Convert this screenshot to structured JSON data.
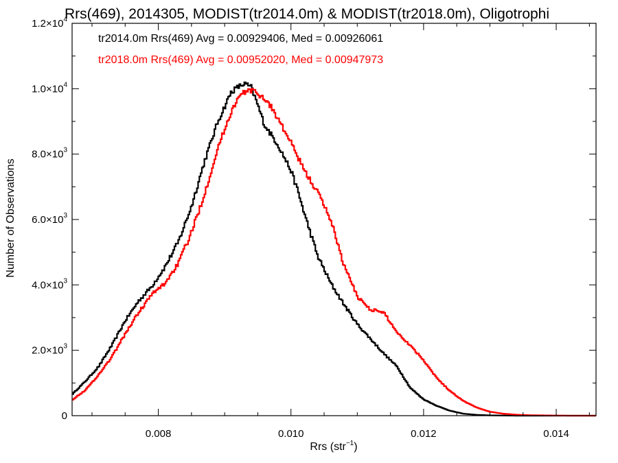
{
  "chart_data": {
    "type": "line",
    "title": "Rrs(469), 2014305, MODIST(tr2014.0m) & MODIST(tr2018.0m), Oligotrophi",
    "xlabel_prefix": "Rrs (str",
    "xlabel_exp": "−1",
    "xlabel_suffix": ")",
    "ylabel": "Number of Observations",
    "xlim": [
      0.0067,
      0.0146
    ],
    "ylim": [
      0,
      12000
    ],
    "x_ticks": [
      {
        "value": 0.008,
        "label": "0.008"
      },
      {
        "value": 0.01,
        "label": "0.010"
      },
      {
        "value": 0.012,
        "label": "0.012"
      },
      {
        "value": 0.014,
        "label": "0.014"
      }
    ],
    "y_ticks": [
      {
        "value": 0,
        "mant": "0",
        "exp": ""
      },
      {
        "value": 2000,
        "mant": "2.0×10",
        "exp": "3"
      },
      {
        "value": 4000,
        "mant": "4.0×10",
        "exp": "3"
      },
      {
        "value": 6000,
        "mant": "6.0×10",
        "exp": "3"
      },
      {
        "value": 8000,
        "mant": "8.0×10",
        "exp": "3"
      },
      {
        "value": 10000,
        "mant": "1.0×10",
        "exp": "4"
      },
      {
        "value": 12000,
        "mant": "1.2×10",
        "exp": "4"
      }
    ],
    "grid": false,
    "legend_position": "top-left",
    "series": [
      {
        "legend": "tr2014.0m Rrs(469) Avg = 0.00929406, Med = 0.00926061",
        "color": "#000000",
        "x": [
          0.0067,
          0.0069,
          0.0071,
          0.0073,
          0.0075,
          0.0077,
          0.0079,
          0.0081,
          0.0083,
          0.0085,
          0.0087,
          0.0089,
          0.0091,
          0.0092,
          0.0093,
          0.0094,
          0.0095,
          0.0096,
          0.0098,
          0.01,
          0.0101,
          0.0102,
          0.0104,
          0.0106,
          0.0108,
          0.011,
          0.0112,
          0.0114,
          0.0116,
          0.0118,
          0.012,
          0.0122,
          0.0124,
          0.0126,
          0.0128,
          0.013,
          0.0132,
          0.0134,
          0.0136,
          0.0138,
          0.014,
          0.0142,
          0.0144,
          0.0146
        ],
        "y": [
          650,
          1050,
          1500,
          2150,
          2900,
          3500,
          3950,
          4550,
          5300,
          6400,
          7800,
          9000,
          9900,
          10050,
          10150,
          10050,
          9500,
          8900,
          8300,
          7500,
          6900,
          6200,
          4900,
          4050,
          3400,
          2800,
          2350,
          1900,
          1500,
          850,
          500,
          300,
          150,
          60,
          25,
          10,
          5,
          0,
          0,
          0,
          0,
          0,
          0,
          0
        ]
      },
      {
        "legend": "tr2018.0m Rrs(469) Avg = 0.00952020, Med = 0.00947973",
        "color": "#ff0000",
        "x": [
          0.0067,
          0.0069,
          0.0071,
          0.0073,
          0.0075,
          0.0077,
          0.0079,
          0.0081,
          0.0083,
          0.0085,
          0.0087,
          0.0089,
          0.0091,
          0.0092,
          0.0093,
          0.0094,
          0.0095,
          0.0096,
          0.0097,
          0.0098,
          0.01,
          0.0102,
          0.0104,
          0.0106,
          0.0108,
          0.011,
          0.0112,
          0.0114,
          0.0116,
          0.0118,
          0.012,
          0.0122,
          0.0124,
          0.0126,
          0.0128,
          0.013,
          0.0132,
          0.0134,
          0.0136,
          0.0138,
          0.014,
          0.0142,
          0.0144,
          0.0146
        ],
        "y": [
          480,
          780,
          1250,
          1800,
          2500,
          3150,
          3700,
          4050,
          4650,
          5600,
          6800,
          8200,
          9300,
          9700,
          9900,
          9950,
          9850,
          9700,
          9450,
          9100,
          8350,
          7500,
          6850,
          6000,
          4600,
          3650,
          3250,
          3150,
          2550,
          2150,
          1700,
          1150,
          750,
          450,
          250,
          120,
          60,
          30,
          15,
          10,
          5,
          0,
          0,
          0
        ]
      }
    ]
  }
}
